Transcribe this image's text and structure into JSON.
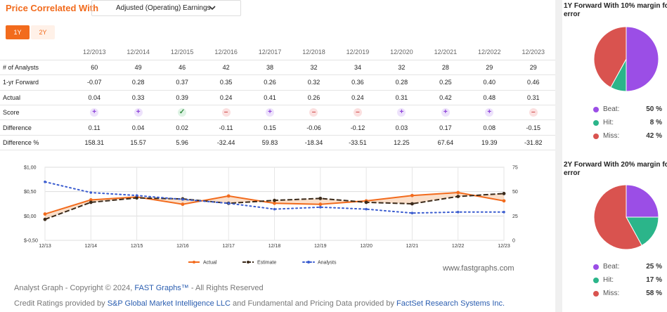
{
  "header": {
    "title": "Price Correlated With",
    "select_value": "Adjusted (Operating) Earnings"
  },
  "tabs": [
    {
      "label": "1Y"
    },
    {
      "label": "2Y"
    }
  ],
  "table": {
    "years": [
      "12/2013",
      "12/2014",
      "12/2015",
      "12/2016",
      "12/2017",
      "12/2018",
      "12/2019",
      "12/2020",
      "12/2021",
      "12/2022",
      "12/2023"
    ],
    "rows": [
      {
        "label": "# of Analysts",
        "values": [
          "60",
          "49",
          "46",
          "42",
          "38",
          "32",
          "34",
          "32",
          "28",
          "29",
          "29"
        ]
      },
      {
        "label": "1-yr Forward",
        "values": [
          "-0.07",
          "0.28",
          "0.37",
          "0.35",
          "0.26",
          "0.32",
          "0.36",
          "0.28",
          "0.25",
          "0.40",
          "0.46"
        ]
      },
      {
        "label": "Actual",
        "values": [
          "0.04",
          "0.33",
          "0.39",
          "0.24",
          "0.41",
          "0.26",
          "0.24",
          "0.31",
          "0.42",
          "0.48",
          "0.31"
        ]
      },
      {
        "label": "Score",
        "icons": [
          "plus",
          "plus",
          "check",
          "minus",
          "plus",
          "minus",
          "minus",
          "plus",
          "plus",
          "plus",
          "minus"
        ]
      },
      {
        "label": "Difference",
        "values": [
          "0.11",
          "0.04",
          "0.02",
          "-0.11",
          "0.15",
          "-0.06",
          "-0.12",
          "0.03",
          "0.17",
          "0.08",
          "-0.15"
        ]
      },
      {
        "label": "Difference %",
        "values": [
          "158.31",
          "15.57",
          "5.96",
          "-32.44",
          "59.83",
          "-18.34",
          "-33.51",
          "12.25",
          "67.64",
          "19.39",
          "-31.82"
        ]
      }
    ]
  },
  "chart_data": {
    "type": "line",
    "x": [
      "12/13",
      "12/14",
      "12/15",
      "12/16",
      "12/17",
      "12/18",
      "12/19",
      "12/20",
      "12/21",
      "12/22",
      "12/23"
    ],
    "left_axis": {
      "ticks": [
        "$1,00",
        "$0,50",
        "$0,00",
        "$-0,50"
      ],
      "values": [
        1.0,
        0.5,
        0.0,
        -0.5
      ]
    },
    "right_axis": {
      "ticks": [
        "75",
        "50",
        "25",
        "0"
      ],
      "values": [
        75,
        50,
        25,
        0
      ]
    },
    "series": [
      {
        "name": "Actual",
        "axis": "left",
        "color": "#f26b1d",
        "values": [
          0.04,
          0.33,
          0.39,
          0.24,
          0.41,
          0.26,
          0.24,
          0.31,
          0.42,
          0.48,
          0.31
        ]
      },
      {
        "name": "Estimate",
        "axis": "left",
        "color": "#3b2a1a",
        "values": [
          -0.07,
          0.28,
          0.37,
          0.35,
          0.26,
          0.32,
          0.36,
          0.28,
          0.25,
          0.4,
          0.46
        ]
      },
      {
        "name": "Analysts",
        "axis": "right",
        "color": "#3a5ccf",
        "values": [
          60,
          49,
          46,
          42,
          38,
          32,
          34,
          32,
          28,
          29,
          29
        ]
      }
    ],
    "legend": [
      "Actual",
      "Estimate",
      "Analysts"
    ]
  },
  "watermark": "www.fastgraphs.com",
  "footer": {
    "line1_prefix": "Analyst Graph - Copyright © 2024,",
    "line1_link": "FAST Graphs™",
    "line1_suffix": "- All Rights Reserved",
    "line2_a": "Credit Ratings provided by",
    "line2_link1": "S&P Global Market Intelligence LLC",
    "line2_b": "and Fundamental and Pricing Data provided by",
    "line2_link2": "FactSet Research Systems Inc."
  },
  "panels": [
    {
      "title_line1": "1Y Forward With 10% margin fo",
      "title_line2": "error",
      "slices": [
        {
          "label": "Beat:",
          "value": "50 %",
          "pct": 50,
          "color": "#9b4ee6"
        },
        {
          "label": "Hit:",
          "value": "8 %",
          "pct": 8,
          "color": "#2bb58a"
        },
        {
          "label": "Miss:",
          "value": "42 %",
          "pct": 42,
          "color": "#d9534f"
        }
      ]
    },
    {
      "title_line1": "2Y Forward With 20% margin fo",
      "title_line2": "error",
      "slices": [
        {
          "label": "Beat:",
          "value": "25 %",
          "pct": 25,
          "color": "#9b4ee6"
        },
        {
          "label": "Hit:",
          "value": "17 %",
          "pct": 17,
          "color": "#2bb58a"
        },
        {
          "label": "Miss:",
          "value": "58 %",
          "pct": 58,
          "color": "#d9534f"
        }
      ]
    }
  ]
}
